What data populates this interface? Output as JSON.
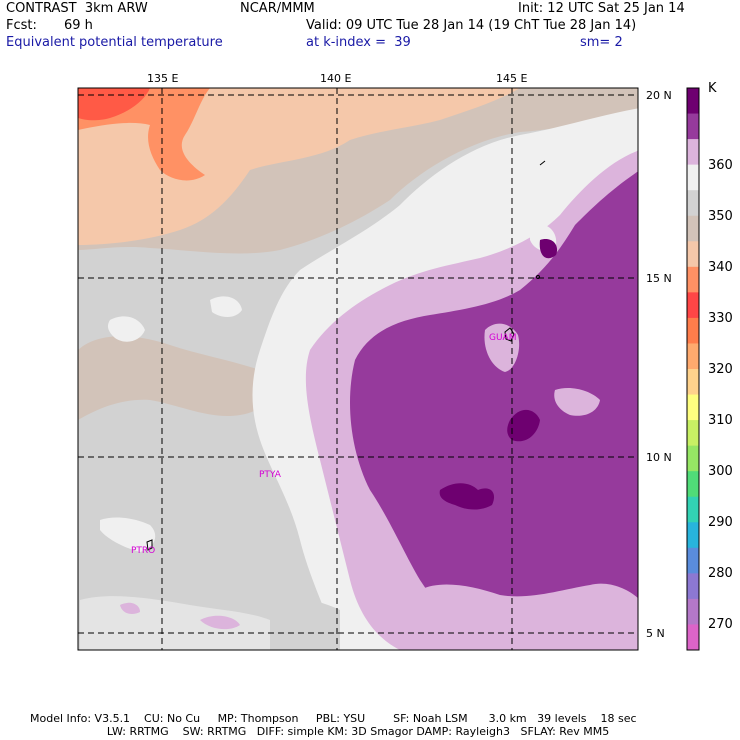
{
  "header": {
    "title_left": "CONTRAST  3km ARW",
    "title_center": "NCAR/MMM",
    "init": "Init: 12 UTC Sat 25 Jan 14",
    "fcst_label": "Fcst:",
    "fcst_value": "69 h",
    "valid": "Valid: 09 UTC Tue 28 Jan 14 (19 ChT Tue 28 Jan 14)",
    "field": "Equivalent potential temperature",
    "level": "at k-index =  39",
    "smoothing": "sm= 2"
  },
  "longitude_labels": [
    "135 E",
    "140 E",
    "145 E"
  ],
  "latitude_labels": [
    "20 N",
    "15 N",
    "10 N",
    "5 N"
  ],
  "stations": [
    "GUAM",
    "PTYA",
    "PTRO"
  ],
  "colorbar": {
    "unit": "K",
    "labels": [
      "360",
      "350",
      "340",
      "330",
      "320",
      "310",
      "300",
      "290",
      "280",
      "270"
    ],
    "colors": [
      "#6e0070",
      "#963a9c",
      "#dcb4dc",
      "#f0f0f0",
      "#d2d2d2",
      "#d2c3b9",
      "#f5c8aa",
      "#ff9164",
      "#ff4646",
      "#ff7d4b",
      "#ffaa6e",
      "#ffd28c",
      "#ffff80",
      "#c8f064",
      "#96e664",
      "#50dc78",
      "#32d2b4",
      "#28b4dc",
      "#5a8cdc",
      "#8c78d2",
      "#b478c8",
      "#dc64c8"
    ]
  },
  "footer": {
    "line1": "Model Info: V3.5.1    CU: No Cu     MP: Thompson     PBL: YSU        SF: Noah LSM      3.0 km   39 levels    18 sec",
    "line2": "                      LW: RRTMG    SW: RRTMG   DIFF: simple KM: 3D Smagor DAMP: Rayleigh3   SFLAY: Rev MM5"
  }
}
